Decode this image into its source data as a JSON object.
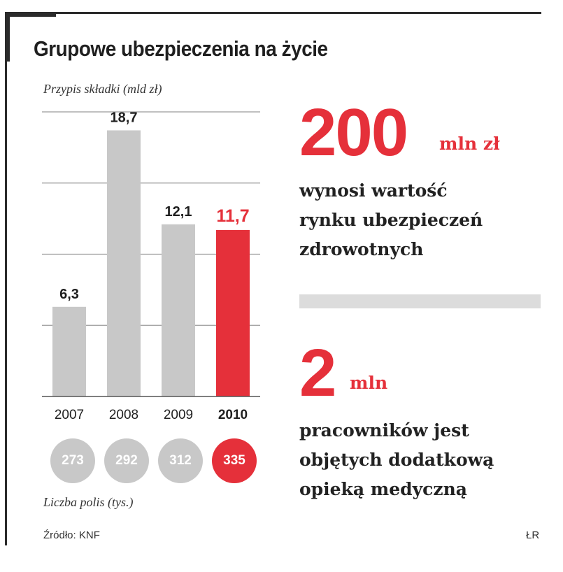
{
  "title": "Grupowe ubezpieczenia na życie",
  "chart_data": {
    "type": "bar",
    "title": "Grupowe ubezpieczenia na życie",
    "ylabel": "Przypis składki (mld zł)",
    "categories": [
      "2007",
      "2008",
      "2009",
      "2010"
    ],
    "values": [
      6.3,
      18.7,
      12.1,
      11.7
    ],
    "value_labels": [
      "6,3",
      "18,7",
      "12,1",
      "11,7"
    ],
    "ylim": [
      0,
      20
    ],
    "grid": true,
    "highlight_index": 3,
    "colors": {
      "bar": "#c8c8c8",
      "highlight": "#e5303a",
      "grid": "#9a9a9a"
    }
  },
  "policies": {
    "label": "Liczba polis (tys.)",
    "values": [
      "273",
      "292",
      "312",
      "335"
    ],
    "colors": {
      "normal": "#c8c8c8",
      "highlight": "#e5303a"
    }
  },
  "facts": [
    {
      "number": "200",
      "unit": "mln zł",
      "lines": [
        "wynosi wartość",
        "rynku ubezpieczeń",
        "zdrowotnych"
      ]
    },
    {
      "number": "2",
      "unit": "mln",
      "lines": [
        "pracowników jest",
        "objętych dodatkową",
        "opieką medyczną"
      ]
    }
  ],
  "source": "Źródło: KNF",
  "author": "ŁR"
}
